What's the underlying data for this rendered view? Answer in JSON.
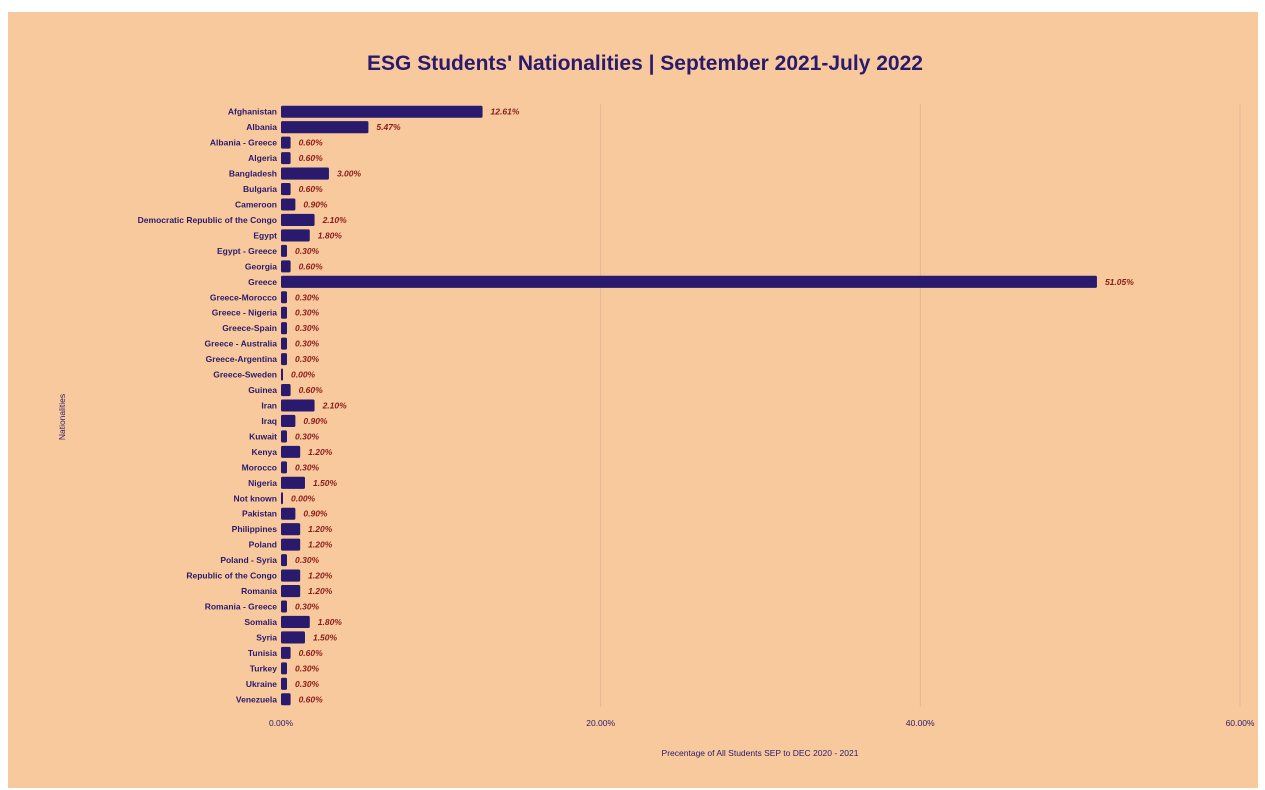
{
  "chart_data": {
    "type": "bar",
    "orientation": "horizontal",
    "title": "ESG Students' Nationalities | September 2021-July 2022",
    "xlabel": "Precentage of All Students SEP to DEC 2020 - 2021",
    "ylabel": "Nationalities",
    "xlim": [
      0,
      60
    ],
    "x_ticks": [
      0,
      20,
      40,
      60
    ],
    "x_tick_labels": [
      "0.00%",
      "20.00%",
      "40.00%",
      "60.00%"
    ],
    "grid": "vertical",
    "legend": "none",
    "colors": {
      "panel": "#f8c99c",
      "bar": "#2a1a6e",
      "value_label": "#8b1a1a",
      "text": "#2a1a6e",
      "grid": "#e0b896"
    },
    "categories": [
      "Afghanistan",
      "Albania",
      "Albania - Greece",
      "Algeria",
      "Bangladesh",
      "Bulgaria",
      "Cameroon",
      "Democratic Republic of the Congo",
      "Egypt",
      "Egypt - Greece",
      "Georgia",
      "Greece",
      "Greece-Morocco",
      "Greece - Nigeria",
      "Greece-Spain",
      "Greece - Australia",
      "Greece-Argentina",
      "Greece-Sweden",
      "Guinea",
      "Iran",
      "Iraq",
      "Kuwait",
      "Kenya",
      "Morocco",
      "Nigeria",
      "Not known",
      "Pakistan",
      "Philippines",
      "Poland",
      "Poland - Syria",
      "Republic of the Congo",
      "Romania",
      "Romania - Greece",
      "Somalia",
      "Syria",
      "Tunisia",
      "Turkey",
      "Ukraine",
      "Venezuela"
    ],
    "values": [
      12.61,
      5.47,
      0.6,
      0.6,
      3.0,
      0.6,
      0.9,
      2.1,
      1.8,
      0.3,
      0.6,
      51.05,
      0.3,
      0.3,
      0.3,
      0.3,
      0.3,
      0.0,
      0.6,
      2.1,
      0.9,
      0.3,
      1.2,
      0.3,
      1.5,
      0.0,
      0.9,
      1.2,
      1.2,
      0.3,
      1.2,
      1.2,
      0.3,
      1.8,
      1.5,
      0.6,
      0.3,
      0.3,
      0.6
    ],
    "value_labels": [
      "12.61%",
      "5.47%",
      "0.60%",
      "0.60%",
      "3.00%",
      "0.60%",
      "0.90%",
      "2.10%",
      "1.80%",
      "0.30%",
      "0.60%",
      "51.05%",
      "0.30%",
      "0.30%",
      "0.30%",
      "0.30%",
      "0.30%",
      "0.00%",
      "0.60%",
      "2.10%",
      "0.90%",
      "0.30%",
      "1.20%",
      "0.30%",
      "1.50%",
      "0.00%",
      "0.90%",
      "1.20%",
      "1.20%",
      "0.30%",
      "1.20%",
      "1.20%",
      "0.30%",
      "1.80%",
      "1.50%",
      "0.60%",
      "0.30%",
      "0.30%",
      "0.60%"
    ]
  }
}
